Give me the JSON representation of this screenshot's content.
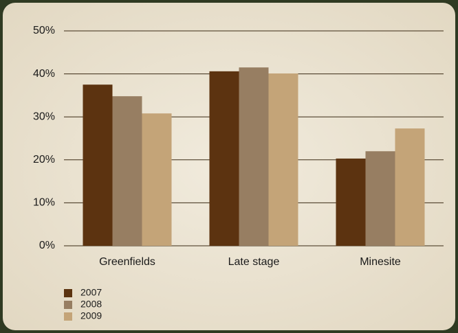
{
  "chart_data": {
    "type": "bar",
    "categories": [
      "Greenfields",
      "Late stage",
      "Minesite"
    ],
    "series": [
      {
        "name": "2007",
        "color": "#5c3310",
        "values": [
          37.5,
          40.6,
          20.3
        ]
      },
      {
        "name": "2008",
        "color": "#977e62",
        "values": [
          34.8,
          41.5,
          22.0
        ]
      },
      {
        "name": "2009",
        "color": "#c4a478",
        "values": [
          30.8,
          40.1,
          27.3
        ]
      }
    ],
    "ylim": [
      0,
      50
    ],
    "yticks": [
      {
        "value": 0,
        "label": "0%"
      },
      {
        "value": 10,
        "label": "10%"
      },
      {
        "value": 20,
        "label": "20%"
      },
      {
        "value": 30,
        "label": "30%"
      },
      {
        "value": 40,
        "label": "40%"
      },
      {
        "value": 50,
        "label": "50%"
      }
    ],
    "grid": true,
    "legend": "bottom-left"
  }
}
